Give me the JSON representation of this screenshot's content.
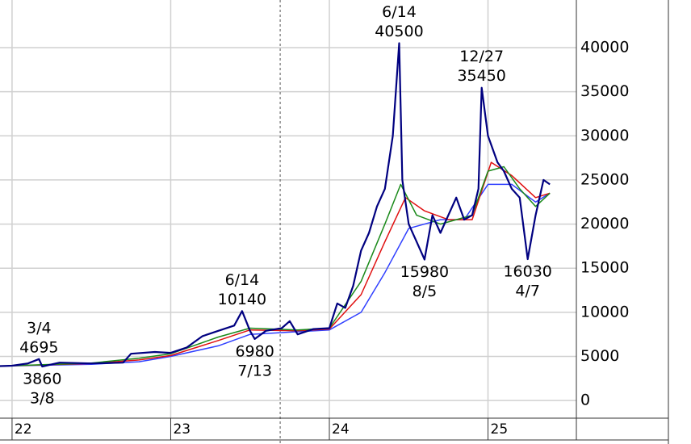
{
  "chart_data": {
    "type": "line",
    "xlim": [
      21.924,
      25.557
    ],
    "ylim": [
      -2000,
      45400
    ],
    "xticks": [
      22,
      23,
      24,
      25
    ],
    "yticks": [
      0,
      5000,
      10000,
      15000,
      20000,
      25000,
      30000,
      35000,
      40000
    ],
    "grid": true,
    "vline": 23.69,
    "series": [
      {
        "color": "#000080",
        "x": [
          21.924,
          22.0,
          22.1,
          22.17,
          22.19,
          22.3,
          22.5,
          22.7,
          22.75,
          22.9,
          23.0,
          23.1,
          23.2,
          23.3,
          23.4,
          23.45,
          23.5,
          23.53,
          23.6,
          23.7,
          23.75,
          23.8,
          23.9,
          24.0,
          24.05,
          24.1,
          24.15,
          24.2,
          24.25,
          24.3,
          24.35,
          24.4,
          24.44,
          24.46,
          24.5,
          24.55,
          24.6,
          24.65,
          24.7,
          24.75,
          24.8,
          24.85,
          24.9,
          24.94,
          24.96,
          25.0,
          25.06,
          25.1,
          25.15,
          25.2,
          25.25,
          25.3,
          25.35,
          25.39
        ],
        "values": [
          3900,
          3950,
          4200,
          4695,
          3860,
          4300,
          4200,
          4300,
          5300,
          5500,
          5400,
          6000,
          7300,
          7900,
          8500,
          10140,
          7900,
          6980,
          7900,
          8200,
          9000,
          7500,
          8100,
          8200,
          11000,
          10500,
          13000,
          17000,
          19000,
          22000,
          24000,
          30000,
          40500,
          25000,
          20000,
          18000,
          15980,
          21000,
          19000,
          21000,
          23000,
          20500,
          21000,
          24000,
          35450,
          30000,
          27000,
          26000,
          24000,
          23000,
          16030,
          21000,
          25000,
          24500
        ]
      },
      {
        "color": "#1a8a1a",
        "x": [
          21.924,
          22.5,
          22.8,
          23.0,
          23.3,
          23.5,
          23.8,
          24.0,
          24.2,
          24.35,
          24.45,
          24.55,
          24.7,
          24.9,
          25.0,
          25.1,
          25.2,
          25.3,
          25.39
        ],
        "values": [
          3900,
          4250,
          4800,
          5300,
          7200,
          8200,
          8000,
          8200,
          13500,
          20000,
          24500,
          21000,
          20000,
          21000,
          26000,
          26500,
          24000,
          22000,
          23500
        ]
      },
      {
        "color": "#e01010",
        "x": [
          21.924,
          22.5,
          22.8,
          23.0,
          23.3,
          23.5,
          23.8,
          24.0,
          24.2,
          24.35,
          24.48,
          24.6,
          24.75,
          24.9,
          25.02,
          25.15,
          25.3,
          25.39
        ],
        "values": [
          3900,
          4200,
          4600,
          5100,
          6800,
          8000,
          7900,
          8100,
          12000,
          18000,
          23000,
          21500,
          20500,
          20500,
          27000,
          25500,
          23000,
          23500
        ]
      },
      {
        "color": "#3040ff",
        "x": [
          21.924,
          22.5,
          22.8,
          23.0,
          23.3,
          23.5,
          23.8,
          24.0,
          24.2,
          24.35,
          24.5,
          24.7,
          24.85,
          25.0,
          25.15,
          25.3,
          25.39
        ],
        "values": [
          3900,
          4100,
          4400,
          5000,
          6200,
          7500,
          7800,
          8000,
          10000,
          14500,
          19500,
          20500,
          20500,
          24500,
          24500,
          22500,
          23500
        ]
      }
    ],
    "annotations": [
      {
        "date": "3/4",
        "value": 4695,
        "x": 22.17,
        "pos": "above"
      },
      {
        "date": "3/8",
        "value": 3860,
        "x": 22.19,
        "pos": "below"
      },
      {
        "date": "6/14",
        "value": 10140,
        "x": 23.45,
        "pos": "above"
      },
      {
        "date": "7/13",
        "value": 6980,
        "x": 23.53,
        "pos": "below"
      },
      {
        "date": "6/14",
        "value": 40500,
        "x": 24.44,
        "pos": "above"
      },
      {
        "date": "8/5",
        "value": 15980,
        "x": 24.6,
        "pos": "below"
      },
      {
        "date": "12/27",
        "value": 35450,
        "x": 24.96,
        "pos": "above"
      },
      {
        "date": "4/7",
        "value": 16030,
        "x": 25.25,
        "pos": "below"
      }
    ]
  }
}
